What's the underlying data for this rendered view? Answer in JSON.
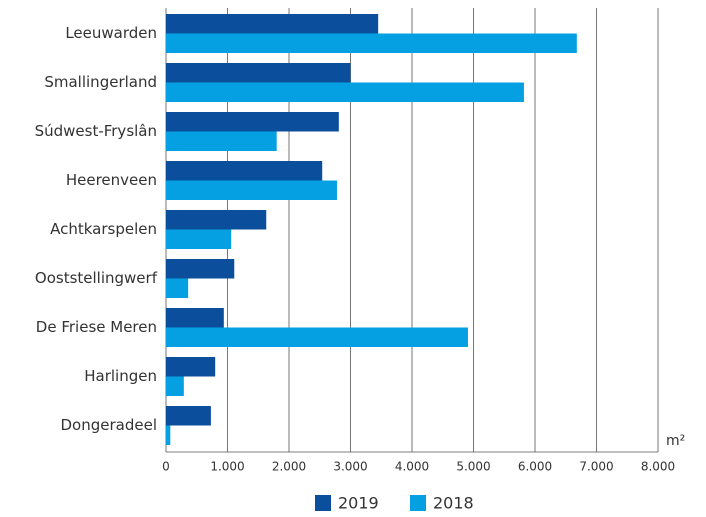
{
  "chart_data": {
    "type": "hbar",
    "categories": [
      "Leeuwarden",
      "Smallingerland",
      "Súdwest-Fryslân",
      "Heerenveen",
      "Achtkarspelen",
      "Ooststellingwerf",
      "De Friese Meren",
      "Harlingen",
      "Dongeradeel"
    ],
    "series": [
      {
        "name": "2019",
        "color": "#0b4f9c",
        "values": [
          3450,
          3000,
          2810,
          2540,
          1630,
          1110,
          940,
          800,
          730
        ]
      },
      {
        "name": "2018",
        "color": "#05a0e2",
        "values": [
          6680,
          5820,
          1800,
          2780,
          1060,
          360,
          4910,
          290,
          70
        ]
      }
    ],
    "x_label": "m²",
    "xlim": [
      0,
      8000
    ],
    "xticks": [
      0,
      {
        "value": 1000,
        "label": "1.000"
      },
      {
        "value": 2000,
        "label": "2.000"
      },
      {
        "value": 3000,
        "label": "3.000"
      },
      {
        "value": 4000,
        "label": "4.000"
      },
      {
        "value": 5000,
        "label": "5.000"
      },
      {
        "value": 6000,
        "label": "6.000"
      },
      {
        "value": 7000,
        "label": "7.000"
      },
      {
        "value": 8000,
        "label": "8.000"
      }
    ],
    "grid": true,
    "legend": "bottom"
  }
}
